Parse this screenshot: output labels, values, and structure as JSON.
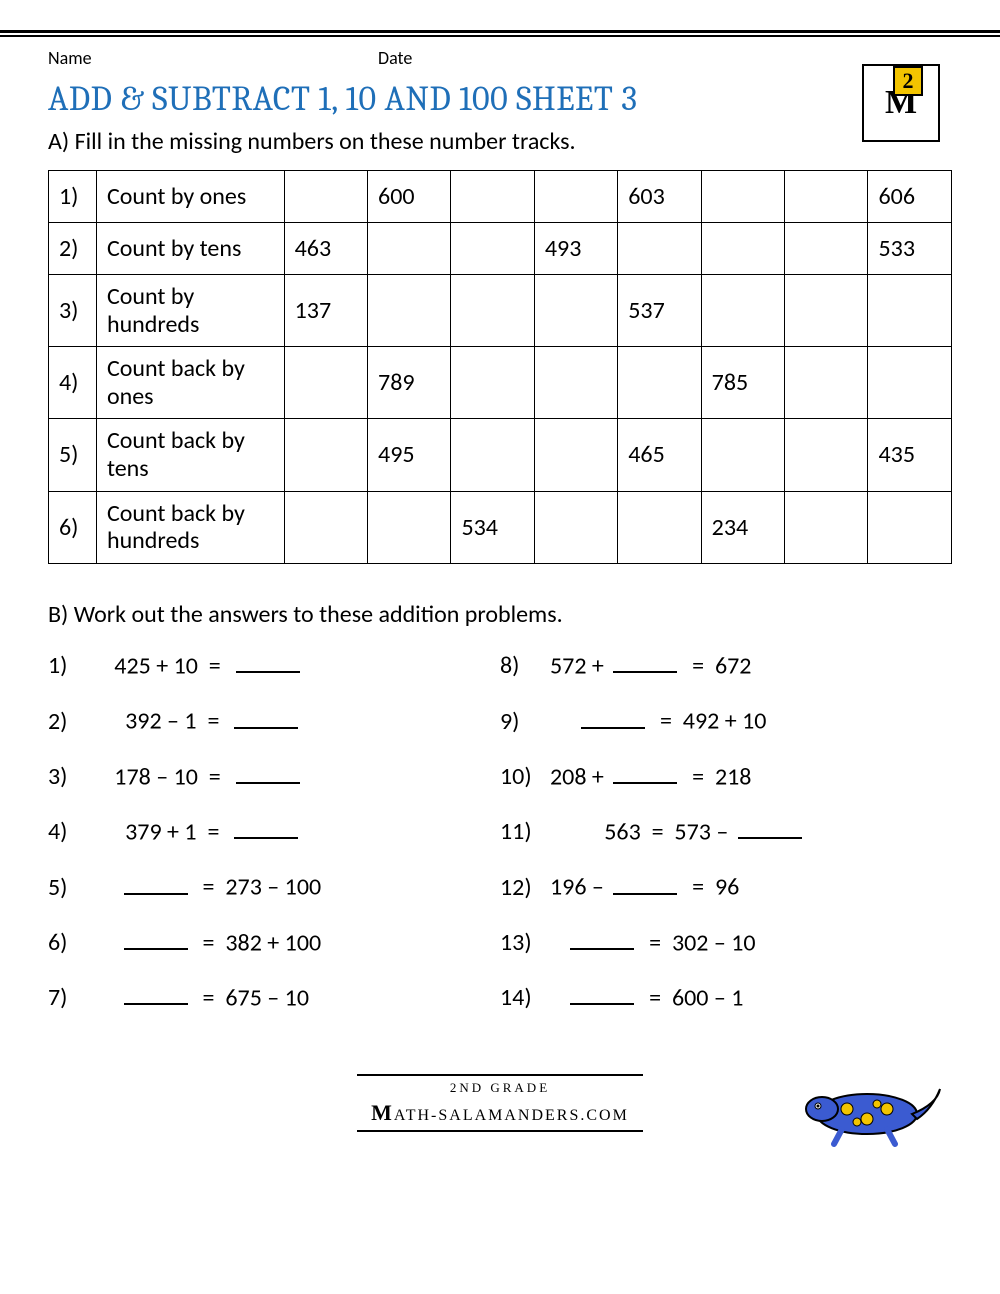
{
  "header": {
    "name_label": "Name",
    "date_label": "Date"
  },
  "badge": {
    "number": "2"
  },
  "title": "ADD & SUBTRACT 1, 10 AND 100 SHEET 3",
  "section_a": {
    "instruction": "A) Fill in the missing numbers on these number tracks.",
    "rows": [
      {
        "n": "1)",
        "label": "Count by ones",
        "cells": [
          "",
          "600",
          "",
          "",
          "603",
          "",
          "",
          "606"
        ]
      },
      {
        "n": "2)",
        "label": "Count by tens",
        "cells": [
          "463",
          "",
          "",
          "493",
          "",
          "",
          "",
          "533"
        ]
      },
      {
        "n": "3)",
        "label": "Count by hundreds",
        "cells": [
          "137",
          "",
          "",
          "",
          "537",
          "",
          "",
          ""
        ]
      },
      {
        "n": "4)",
        "label": "Count back by ones",
        "cells": [
          "",
          "789",
          "",
          "",
          "",
          "785",
          "",
          ""
        ]
      },
      {
        "n": "5)",
        "label": "Count back by tens",
        "cells": [
          "",
          "495",
          "",
          "",
          "465",
          "",
          "",
          "435"
        ]
      },
      {
        "n": "6)",
        "label": "Count back by hundreds",
        "cells": [
          "",
          "",
          "534",
          "",
          "",
          "234",
          "",
          ""
        ]
      }
    ]
  },
  "section_b": {
    "instruction": "B) Work out the answers to these addition problems.",
    "left": [
      {
        "n": "1)",
        "pre": "   425 + 10  =  ",
        "blank": true,
        "post": ""
      },
      {
        "n": "2)",
        "pre": "     392 – 1  =  ",
        "blank": true,
        "post": ""
      },
      {
        "n": "3)",
        "pre": "   178 – 10  =  ",
        "blank": true,
        "post": ""
      },
      {
        "n": "4)",
        "pre": "     379 + 1  =  ",
        "blank": true,
        "post": ""
      },
      {
        "n": "5)",
        "pre": "    ",
        "blank": true,
        "post": "  =  273 – 100"
      },
      {
        "n": "6)",
        "pre": "    ",
        "blank": true,
        "post": "  =  382 + 100"
      },
      {
        "n": "7)",
        "pre": "    ",
        "blank": true,
        "post": "  =  675 – 10"
      }
    ],
    "right": [
      {
        "n": "8)",
        "pre": "572 + ",
        "blank": true,
        "post": "  =  672"
      },
      {
        "n": "9)",
        "pre": "     ",
        "blank": true,
        "post": "  =  492 + 10"
      },
      {
        "n": "10)",
        "pre": "208 + ",
        "blank": true,
        "post": "  =  218"
      },
      {
        "n": "11)",
        "pre": "          563  =  573 – ",
        "blank": true,
        "post": ""
      },
      {
        "n": "12)",
        "pre": "196 – ",
        "blank": true,
        "post": "  =  96"
      },
      {
        "n": "13)",
        "pre": "   ",
        "blank": true,
        "post": "  =  302 – 10"
      },
      {
        "n": "14)",
        "pre": "   ",
        "blank": true,
        "post": "  =  600 – 1"
      }
    ]
  },
  "footer": {
    "grade": "2ND GRADE",
    "site": "ATH-SALAMANDERS.COM"
  },
  "colors": {
    "title": "#1f6fb8",
    "border": "#000000",
    "badge_yellow": "#f3c400",
    "salamander_body": "#3b5bd1",
    "salamander_spot": "#f3c400"
  }
}
